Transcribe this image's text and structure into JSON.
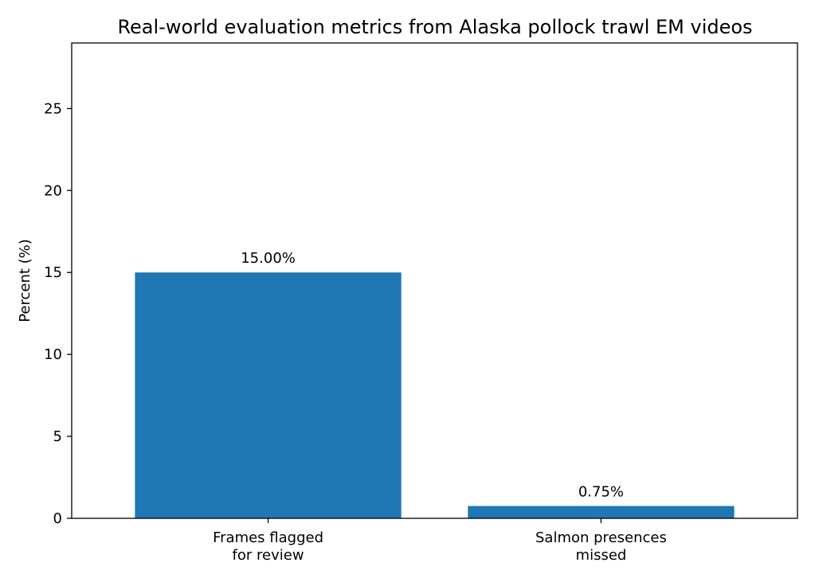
{
  "chart_data": {
    "type": "bar",
    "title": "Real-world evaluation metrics from Alaska pollock trawl EM videos",
    "xlabel": "",
    "ylabel": "Percent (%)",
    "categories": [
      [
        "Frames flagged",
        "for review"
      ],
      [
        "Salmon presences",
        "missed"
      ]
    ],
    "values": [
      15.0,
      0.75
    ],
    "data_labels": [
      "15.00%",
      "0.75%"
    ],
    "ylim": [
      0,
      29
    ],
    "yticks": [
      0,
      5,
      10,
      15,
      20,
      25
    ],
    "bar_color": "#1f77b4",
    "grid": false
  }
}
